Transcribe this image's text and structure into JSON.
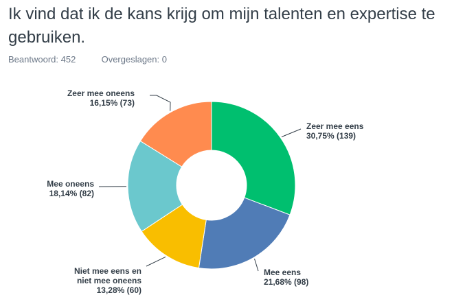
{
  "question": "Ik vind dat ik de kans krijg om mijn talenten en expertise te gebruiken.",
  "answered_label": "Beantwoord:",
  "answered_count": "452",
  "skipped_label": "Overgeslagen:",
  "skipped_count": "0",
  "chart_data": {
    "type": "pie",
    "donut": true,
    "categories": [
      "Zeer mee eens",
      "Mee eens",
      "Niet mee eens en niet mee oneens",
      "Mee oneens",
      "Zeer mee oneens"
    ],
    "values": [
      139,
      98,
      60,
      82,
      73
    ],
    "percent_labels": [
      "30,75% (139)",
      "21,68% (98)",
      "13,28% (60)",
      "18,14% (82)",
      "16,15% (73)"
    ],
    "colors": [
      "#00bf6f",
      "#507cb6",
      "#f9be00",
      "#6bc8cd",
      "#ff8b4f"
    ],
    "start_angle_deg": 0,
    "direction": "clockwise"
  }
}
